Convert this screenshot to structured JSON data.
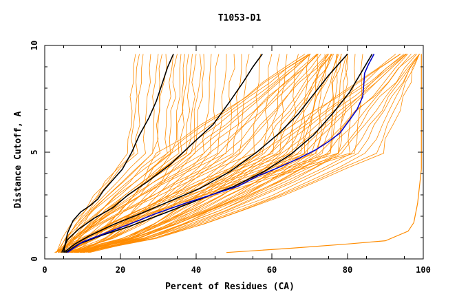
{
  "chart_data": {
    "type": "line",
    "title": "T1053-D1",
    "xlabel": "Percent of Residues (CA)",
    "ylabel": "Distance Cutoff, A",
    "xlim": [
      0,
      100
    ],
    "ylim": [
      0,
      10
    ],
    "x_ticks": [
      "0",
      "20",
      "40",
      "60",
      "80",
      "100"
    ],
    "y_ticks": [
      "0",
      "5",
      "10"
    ],
    "grid": false,
    "colors": {
      "background_models": "#ff8c00",
      "highlight_models": "#000000",
      "best_model": "#0000cc"
    },
    "series": [
      {
        "role": "background-group",
        "color": "#ff8c00",
        "start_x": 2.5,
        "mid": [
          22,
          23,
          24,
          26,
          28,
          29,
          30,
          32,
          33,
          34,
          35,
          36,
          37,
          38,
          39,
          40,
          42,
          44,
          46,
          48,
          50,
          52,
          55,
          58,
          60,
          62,
          65,
          68,
          70,
          72,
          75,
          78,
          80,
          82
        ],
        "end_x": 35
      },
      {
        "role": "background-group",
        "color": "#ff8c00",
        "start_x": 5,
        "mid": [
          30,
          32,
          34,
          36,
          38,
          40,
          42,
          44,
          46,
          48,
          50,
          52,
          54,
          56,
          58,
          60,
          62,
          64,
          66,
          68,
          70,
          72,
          74,
          76,
          78
        ],
        "end_x": 78
      },
      {
        "role": "background-group",
        "color": "#ff8c00",
        "start_x": 8,
        "mid": [
          55,
          57,
          59,
          61,
          63,
          65,
          67,
          69,
          71,
          73,
          75,
          77,
          79,
          81,
          83,
          85,
          87,
          89
        ],
        "end_x": 99
      },
      {
        "role": "highlight",
        "color": "#000000",
        "x": [
          5.0,
          6.0,
          7.5,
          9.5,
          12.0,
          14.0,
          15.5,
          17.5,
          20.5,
          23.0,
          25.0,
          27.5,
          29.5,
          31.0,
          32.5,
          34.0
        ],
        "y": [
          0.3,
          1.2,
          1.8,
          2.2,
          2.5,
          2.8,
          3.2,
          3.6,
          4.2,
          5.0,
          5.8,
          6.6,
          7.4,
          8.2,
          9.0,
          9.6
        ]
      },
      {
        "role": "highlight",
        "color": "#000000",
        "x": [
          4.5,
          6.0,
          9.0,
          13.0,
          18.0,
          22.0,
          27.0,
          33.0,
          39.0,
          44.5,
          49.0,
          52.5,
          55.0,
          57.5
        ],
        "y": [
          0.3,
          0.9,
          1.4,
          1.9,
          2.4,
          3.0,
          3.6,
          4.4,
          5.4,
          6.3,
          7.4,
          8.3,
          9.0,
          9.6
        ]
      },
      {
        "role": "highlight",
        "color": "#000000",
        "x": [
          5.0,
          8.0,
          12.0,
          18.0,
          25.0,
          33.0,
          41.0,
          49.0,
          56.0,
          62.0,
          67.0,
          71.0,
          75.0,
          78.5,
          80.0
        ],
        "y": [
          0.3,
          0.7,
          1.1,
          1.6,
          2.1,
          2.7,
          3.3,
          4.1,
          5.0,
          5.9,
          6.8,
          7.7,
          8.6,
          9.3,
          9.6
        ]
      },
      {
        "role": "highlight",
        "color": "#000000",
        "x": [
          5.5,
          9.0,
          15.0,
          22.0,
          31.0,
          41.0,
          50.0,
          58.0,
          65.0,
          71.0,
          76.0,
          80.5,
          83.5,
          86.5
        ],
        "y": [
          0.3,
          0.7,
          1.1,
          1.5,
          2.1,
          2.8,
          3.4,
          4.1,
          4.9,
          5.8,
          6.8,
          7.8,
          8.7,
          9.6
        ]
      },
      {
        "role": "best-model",
        "color": "#0000cc",
        "x": [
          6.0,
          10.0,
          16.0,
          22.0,
          29.0,
          37.0,
          44.0,
          51.0,
          56.5,
          62.0,
          67.0,
          71.5,
          75.0,
          78.0,
          80.5,
          82.5,
          84.0,
          84.3,
          84.5,
          85.5,
          87.0
        ],
        "y": [
          0.3,
          0.8,
          1.2,
          1.6,
          2.1,
          2.6,
          3.0,
          3.4,
          3.9,
          4.3,
          4.7,
          5.1,
          5.5,
          5.9,
          6.5,
          7.0,
          7.6,
          8.2,
          8.7,
          9.1,
          9.6
        ]
      },
      {
        "role": "outlier",
        "color": "#ff8c00",
        "x": [
          48.0,
          65.0,
          80.0,
          90.0,
          96.0,
          97.5,
          98.5,
          99.0,
          99.5
        ],
        "y": [
          0.3,
          0.5,
          0.7,
          0.85,
          1.3,
          1.7,
          2.6,
          3.4,
          4.2
        ]
      },
      {
        "role": "outlier",
        "color": "#ff8c00",
        "x": [
          99.5,
          99.5
        ],
        "y": [
          4.2,
          9.6
        ]
      }
    ]
  }
}
